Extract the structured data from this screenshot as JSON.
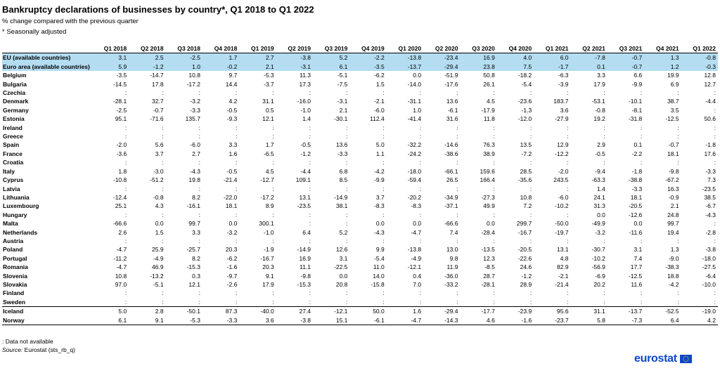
{
  "title": "Bankruptcy declarations of businesses by country*, Q1 2018 to Q1 2022",
  "subtitle1": "% change compared with the previous quarter",
  "subtitle2": "* Seasonally adjusted",
  "columns": [
    "Q1 2018",
    "Q2 2018",
    "Q3 2018",
    "Q4 2018",
    "Q1 2019",
    "Q2 2019",
    "Q3 2019",
    "Q4 2019",
    "Q1 2020",
    "Q2 2020",
    "Q3 2020",
    "Q4 2020",
    "Q1 2021",
    "Q2 2021",
    "Q3 2021",
    "Q4 2021",
    "Q1 2022"
  ],
  "aggregate_rows": [
    {
      "country": "EU (available countries)",
      "values": [
        "3.1",
        "2.5",
        "-2.5",
        "1.7",
        "2.7",
        "-3.8",
        "5.2",
        "-2.2",
        "-13.8",
        "-23.4",
        "16.9",
        "4.0",
        "6.0",
        "-7.8",
        "-0.7",
        "1.3",
        "-0.8"
      ]
    },
    {
      "country": "Euro area (available countries)",
      "values": [
        "5.9",
        "-1.2",
        "1.0",
        "-0.2",
        "2.1",
        "-3.1",
        "6.1",
        "-3.5",
        "-13.7",
        "-29.4",
        "23.8",
        "7.5",
        "-1.7",
        "0.1",
        "-0.7",
        "1.2",
        "-0.3"
      ]
    }
  ],
  "member_rows": [
    {
      "country": "Belgium",
      "values": [
        "-3.5",
        "-14.7",
        "10.8",
        "9.7",
        "-5.3",
        "11.3",
        "-5.1",
        "-6.2",
        "0.0",
        "-51.9",
        "50.8",
        "-18.2",
        "-6.3",
        "3.3",
        "6.6",
        "19.9",
        "12.8"
      ]
    },
    {
      "country": "Bulgaria",
      "values": [
        "-14.5",
        "17.8",
        "-17.2",
        "14.4",
        "-3.7",
        "17.3",
        "-7.5",
        "1.5",
        "-14.0",
        "-17.6",
        "26.1",
        "-5.4",
        "-3.9",
        "17.9",
        "-9.9",
        "6.9",
        "12.7"
      ]
    },
    {
      "country": "Czechia",
      "values": [
        ":",
        ":",
        ":",
        ":",
        ":",
        ":",
        ":",
        ":",
        ":",
        ":",
        ":",
        ":",
        ":",
        ":",
        ":",
        ":",
        ":"
      ]
    },
    {
      "country": "Denmark",
      "values": [
        "-28.1",
        "32.7",
        "-3.2",
        "4.2",
        "31.1",
        "-16.0",
        "-3.1",
        "-2.1",
        "-31.1",
        "13.6",
        "4.5",
        "-23.6",
        "183.7",
        "-53.1",
        "-10.1",
        "38.7",
        "-4.4"
      ]
    },
    {
      "country": "Germany",
      "values": [
        "-2.5",
        "-0.7",
        "-3.3",
        "-0.5",
        "0.5",
        "-1.0",
        "2.1",
        "-6.0",
        "1.0",
        "-6.1",
        "-17.9",
        "-1.3",
        "3.6",
        "-0.8",
        "-8.1",
        "3.5",
        ":"
      ]
    },
    {
      "country": "Estonia",
      "values": [
        "95.1",
        "-71.6",
        "135.7",
        "-9.3",
        "12.1",
        "1.4",
        "-30.1",
        "112.4",
        "-41.4",
        "31.6",
        "11.8",
        "-12.0",
        "-27.9",
        "19.2",
        "-31.8",
        "-12.5",
        "50.6"
      ]
    },
    {
      "country": "Ireland",
      "values": [
        ":",
        ":",
        ":",
        ":",
        ":",
        ":",
        ":",
        ":",
        ":",
        ":",
        ":",
        ":",
        ":",
        ":",
        ":",
        ":",
        ":"
      ]
    },
    {
      "country": "Greece",
      "values": [
        ":",
        ":",
        ":",
        ":",
        ":",
        ":",
        ":",
        ":",
        ":",
        ":",
        ":",
        ":",
        ":",
        ":",
        ":",
        ":",
        ":"
      ]
    },
    {
      "country": "Spain",
      "values": [
        "-2.0",
        "5.6",
        "-6.0",
        "3.3",
        "1.7",
        "-0.5",
        "13.6",
        "5.0",
        "-32.2",
        "-14.6",
        "76.3",
        "13.5",
        "12.9",
        "2.9",
        "0.1",
        "-0.7",
        "-1.8"
      ]
    },
    {
      "country": "France",
      "values": [
        "-3.6",
        "3.7",
        "2.7",
        "1.6",
        "-6.5",
        "-1.2",
        "-3.3",
        "1.1",
        "-24.2",
        "-38.6",
        "38.9",
        "-7.2",
        "-12.2",
        "-0.5",
        "-2.2",
        "18.1",
        "17.6"
      ]
    },
    {
      "country": "Croatia",
      "values": [
        ":",
        ":",
        ":",
        ":",
        ":",
        ":",
        ":",
        ":",
        ":",
        ":",
        ":",
        ":",
        ":",
        ":",
        ":",
        ":",
        ":"
      ]
    },
    {
      "country": "Italy",
      "values": [
        "1.8",
        "-3.0",
        "-4.3",
        "-0.5",
        "4.5",
        "-4.4",
        "6.8",
        "-4.2",
        "-18.0",
        "-66.1",
        "159.6",
        "28.5",
        "-2.0",
        "-9.4",
        "-1.8",
        "-9.8",
        "-3.3"
      ]
    },
    {
      "country": "Cyprus",
      "values": [
        "-10.8",
        "-51.2",
        "19.8",
        "-21.4",
        "-12.7",
        "109.1",
        "8.5",
        "-9.9",
        "-59.4",
        "26.5",
        "166.4",
        "-35.6",
        "243.5",
        "-63.3",
        "-38.8",
        "-67.2",
        "7.3"
      ]
    },
    {
      "country": "Latvia",
      "values": [
        ":",
        ":",
        ":",
        ":",
        ":",
        ":",
        ":",
        ":",
        ":",
        ":",
        ":",
        ":",
        ":",
        "1.4",
        "-3.3",
        "16.3",
        "-23.5"
      ]
    },
    {
      "country": "Lithuania",
      "values": [
        "-12.4",
        "-0.8",
        "8.2",
        "-22.0",
        "-17.2",
        "13.1",
        "-14.9",
        "3.7",
        "-20.2",
        "-34.9",
        "-27.3",
        "10.8",
        "-6.0",
        "24.1",
        "18.1",
        "-0.9",
        "38.5"
      ]
    },
    {
      "country": "Luxembourg",
      "values": [
        "25.1",
        "4.3",
        "-16.1",
        "18.1",
        "8.9",
        "-23.5",
        "38.1",
        "-8.3",
        "-8.3",
        "-37.1",
        "49.9",
        "7.2",
        "-10.2",
        "31.3",
        "-20.5",
        "2.1",
        "-6.7"
      ]
    },
    {
      "country": "Hungary",
      "values": [
        ":",
        ":",
        ":",
        ":",
        ":",
        ":",
        ":",
        ":",
        ":",
        ":",
        ":",
        ":",
        ":",
        "0.0",
        "-12.6",
        "24.8",
        "-4.3"
      ]
    },
    {
      "country": "Malta",
      "values": [
        "-66.6",
        "0.0",
        "99.7",
        "0.0",
        "300.1",
        ":",
        ":",
        "0.0",
        "0.0",
        "-66.6",
        "0.0",
        "299.7",
        "-50.0",
        "-49.9",
        "0.0",
        "99.7",
        ":"
      ]
    },
    {
      "country": "Netherlands",
      "values": [
        "2.6",
        "1.5",
        "3.3",
        "-3.2",
        "-1.0",
        "6.4",
        "5.2",
        "-4.3",
        "-4.7",
        "7.4",
        "-28.4",
        "-16.7",
        "-19.7",
        "-3.2",
        "-11.6",
        "19.4",
        "-2.8"
      ]
    },
    {
      "country": "Austria",
      "values": [
        ":",
        ":",
        ":",
        ":",
        ":",
        ":",
        ":",
        ":",
        ":",
        ":",
        ":",
        ":",
        ":",
        ":",
        ":",
        ":",
        ":"
      ]
    },
    {
      "country": "Poland",
      "values": [
        "-4.7",
        "25.9",
        "-25.7",
        "20.3",
        "-1.9",
        "-14.9",
        "12.6",
        "9.9",
        "-13.8",
        "13.0",
        "-13.5",
        "-20.5",
        "13.1",
        "-30.7",
        "3.1",
        "1.3",
        "-3.8"
      ]
    },
    {
      "country": "Portugal",
      "values": [
        "-11.2",
        "-4.9",
        "8.2",
        "-6.2",
        "-16.7",
        "16.9",
        "3.1",
        "-5.4",
        "-4.9",
        "9.8",
        "12.3",
        "-22.6",
        "4.8",
        "-10.2",
        "7.4",
        "-9.0",
        "-18.0"
      ]
    },
    {
      "country": "Romania",
      "values": [
        "-4.7",
        "46.9",
        "-15.3",
        "-1.6",
        "20.3",
        "11.1",
        "-22.5",
        "11.0",
        "-12.1",
        "11.9",
        "-8.5",
        "24.6",
        "82.9",
        "-56.9",
        "17.7",
        "-38.3",
        "-27.5"
      ]
    },
    {
      "country": "Slovenia",
      "values": [
        "10.8",
        "-13.2",
        "0.3",
        "-9.7",
        "9.1",
        "-9.8",
        "0.0",
        "14.0",
        "0.4",
        "-36.0",
        "28.7",
        "-1.2",
        "-2.1",
        "-6.9",
        "-12.5",
        "18.8",
        "-6.4"
      ]
    },
    {
      "country": "Slovakia",
      "values": [
        "97.0",
        "-5.1",
        "12.1",
        "-2.6",
        "17.9",
        "-15.3",
        "20.8",
        "-15.8",
        "7.0",
        "-33.2",
        "-28.1",
        "28.9",
        "-21.4",
        "20.2",
        "11.6",
        "-4.2",
        "-10.0"
      ]
    },
    {
      "country": "Finland",
      "values": [
        ":",
        ":",
        ":",
        ":",
        ":",
        ":",
        ":",
        ":",
        ":",
        ":",
        ":",
        ":",
        ":",
        ":",
        ":",
        ":",
        ":"
      ]
    },
    {
      "country": "Sweden",
      "values": [
        ":",
        ":",
        ":",
        ":",
        ":",
        ":",
        ":",
        ":",
        ":",
        ":",
        ":",
        ":",
        ":",
        ":",
        ":",
        ":",
        ":"
      ]
    }
  ],
  "efta_rows": [
    {
      "country": "Iceland",
      "values": [
        "5.0",
        "2.8",
        "-50.1",
        "87.3",
        "-40.0",
        "27.4",
        "-12.1",
        "50.0",
        "1.6",
        "-29.4",
        "-17.7",
        "-23.9",
        "95.6",
        "31.1",
        "-13.7",
        "-52.5",
        "-19.0"
      ]
    },
    {
      "country": "Norway",
      "values": [
        "6.1",
        "9.1",
        "-5.3",
        "-3.3",
        "3.6",
        "-3.8",
        "15.1",
        "-6.1",
        "-4.7",
        "-14.3",
        "4.6",
        "-1.6",
        "-23.7",
        "5.8",
        "-7.3",
        "6.4",
        "4.2"
      ]
    }
  ],
  "footnote_na": ":   Data not available",
  "source_label": "Source:",
  "source_text": "Eurostat (sts_rb_q)",
  "logo_text": "eurostat",
  "colors": {
    "aggregate_row_bg": "#b4ddf2",
    "logo_blue": "#0e47cb",
    "flag_star": "#ffdd00"
  }
}
